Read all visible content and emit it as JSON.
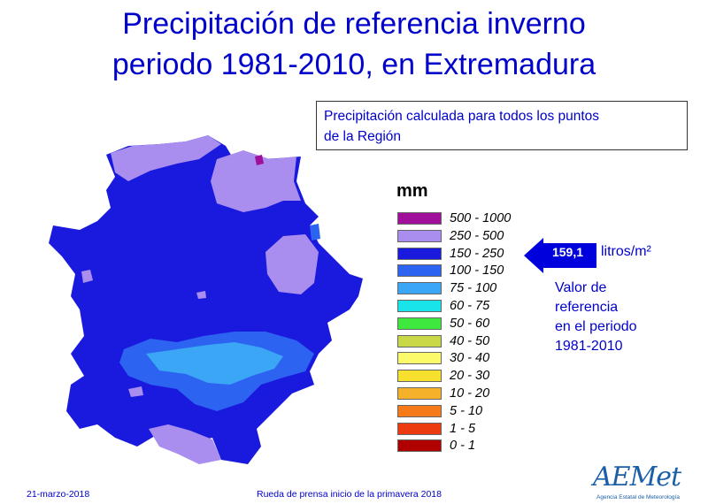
{
  "title_line1": "Precipitación de referencia inverno",
  "title_line2": "periodo 1981-2010, en Extremadura",
  "note": {
    "line1": "Precipitación calculada para todos los puntos",
    "line2": "de la Región"
  },
  "legend": {
    "title": "mm",
    "items": [
      {
        "label": "500 - 1000",
        "color": "#a0109a"
      },
      {
        "label": "250 - 500",
        "color": "#a98ef0"
      },
      {
        "label": "150 - 250",
        "color": "#1a1ade"
      },
      {
        "label": "100 - 150",
        "color": "#2c63f0"
      },
      {
        "label": "75 - 100",
        "color": "#3aa6f5"
      },
      {
        "label": "60 - 75",
        "color": "#19e4ea"
      },
      {
        "label": "50 - 60",
        "color": "#3ee83e"
      },
      {
        "label": "40 - 50",
        "color": "#c9d846"
      },
      {
        "label": "30 - 40",
        "color": "#fbfa6a"
      },
      {
        "label": "20 - 30",
        "color": "#f7e12e"
      },
      {
        "label": "10 - 20",
        "color": "#f6b12a"
      },
      {
        "label": "5 - 10",
        "color": "#f67a18"
      },
      {
        "label": "1 - 5",
        "color": "#ec3b10"
      },
      {
        "label": "0 - 1",
        "color": "#b00000"
      }
    ]
  },
  "reference": {
    "value": "159,1",
    "unit": "litros/m²",
    "arrow_color": "#0000dd",
    "line1": "Valor de",
    "line2": "referencia",
    "line3": "en el periodo",
    "line4": "1981-2010"
  },
  "footer": {
    "date": "21-marzo-2018",
    "event": "Rueda de prensa inicio de la primavera 2018"
  },
  "logo": {
    "text": "AEMet",
    "subtitle": "Agencia Estatal de Meteorología"
  }
}
